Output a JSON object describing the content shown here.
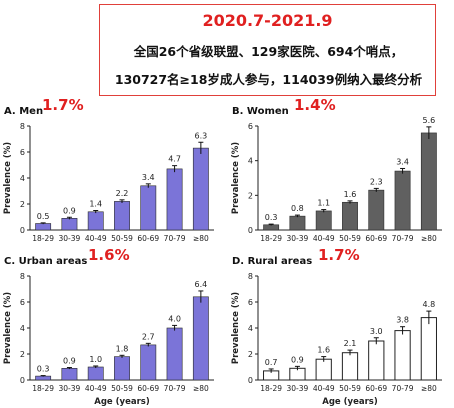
{
  "header": {
    "title": "2020.7-2021.9",
    "line1": "全国26个省级联盟、129家医院、694个哨点，",
    "line2": "130727名≥18岁成人参与，114039例纳入最终分析"
  },
  "colors": {
    "accent_red": "#e02020",
    "bar_blue": "#7b74d8",
    "bar_gray": "#606060",
    "bar_white": "#ffffff"
  },
  "chart_data": [
    {
      "type": "bar",
      "title": "A. Men",
      "highlight": "1.7%",
      "ylabel": "Prevalence (%)",
      "xlabel": "",
      "categories": [
        "18-29",
        "30-39",
        "40-49",
        "50-59",
        "60-69",
        "70-79",
        "≥80"
      ],
      "values": [
        0.5,
        0.9,
        1.4,
        2.2,
        3.4,
        4.7,
        6.3
      ],
      "value_labels": [
        "0.5",
        "0.9",
        "1.4",
        "2.2",
        "3.4",
        "4.7",
        "6.3"
      ],
      "error": [
        0.05,
        0.08,
        0.1,
        0.12,
        0.15,
        0.25,
        0.45
      ],
      "ylim": [
        0,
        8
      ],
      "yticks": [
        0,
        2,
        4,
        6,
        8
      ],
      "bar_color": "#7b74d8"
    },
    {
      "type": "bar",
      "title": "B. Women",
      "highlight": "1.4%",
      "ylabel": "Prevalence (%)",
      "xlabel": "",
      "categories": [
        "18-29",
        "30-39",
        "40-49",
        "50-59",
        "60-69",
        "70-79",
        "≥80"
      ],
      "values": [
        0.3,
        0.8,
        1.1,
        1.6,
        2.3,
        3.4,
        5.6
      ],
      "value_labels": [
        "0.3",
        "0.8",
        "1.1",
        "1.6",
        "2.3",
        "3.4",
        "5.6"
      ],
      "error": [
        0.04,
        0.06,
        0.08,
        0.08,
        0.1,
        0.15,
        0.35
      ],
      "ylim": [
        0,
        6
      ],
      "yticks": [
        0,
        2,
        4,
        6
      ],
      "bar_color": "#606060"
    },
    {
      "type": "bar",
      "title": "C. Urban areas",
      "highlight": "1.6%",
      "ylabel": "Prevalence (%)",
      "xlabel": "Age (years)",
      "categories": [
        "18-29",
        "30-39",
        "40-49",
        "50-59",
        "60-69",
        "70-79",
        "≥80"
      ],
      "values": [
        0.3,
        0.9,
        1.0,
        1.8,
        2.7,
        4.0,
        6.4
      ],
      "value_labels": [
        "0.3",
        "0.9",
        "1.0",
        "1.8",
        "2.7",
        "4.0",
        "6.4"
      ],
      "error": [
        0.04,
        0.06,
        0.08,
        0.1,
        0.12,
        0.2,
        0.45
      ],
      "ylim": [
        0,
        8
      ],
      "yticks": [
        0,
        2,
        4,
        6,
        8
      ],
      "bar_color": "#7b74d8"
    },
    {
      "type": "bar",
      "title": "D. Rural areas",
      "highlight": "1.7%",
      "ylabel": "Prevalence (%)",
      "xlabel": "Age (years)",
      "categories": [
        "18-29",
        "30-39",
        "40-49",
        "50-59",
        "60-69",
        "70-79",
        "≥80"
      ],
      "values": [
        0.7,
        0.9,
        1.6,
        2.1,
        3.0,
        3.8,
        4.8
      ],
      "value_labels": [
        "0.7",
        "0.9",
        "1.6",
        "2.1",
        "3.0",
        "3.8",
        "4.8"
      ],
      "error": [
        0.15,
        0.15,
        0.2,
        0.2,
        0.25,
        0.3,
        0.5
      ],
      "ylim": [
        0,
        8
      ],
      "yticks": [
        0,
        2,
        4,
        6,
        8
      ],
      "bar_color": "#ffffff"
    }
  ]
}
